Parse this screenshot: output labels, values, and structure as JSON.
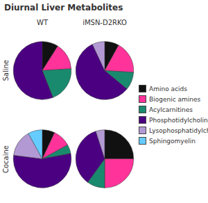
{
  "title": "Diurnal Liver Metabolites",
  "chart_data": [
    {
      "type": "pie",
      "title": "WT",
      "y_label": "Saline",
      "legend": "right",
      "categories": [
        "Amino acids",
        "Biogenic amines",
        "Acylcarnitines",
        "Phosphotidylcholines",
        "Lysophosphatidylcholines",
        "Sphingomyelin"
      ],
      "values": [
        9,
        15,
        20,
        56,
        0,
        0
      ],
      "colors": [
        "#111111",
        "#ff3399",
        "#1a8a6e",
        "#4b0082",
        "#b399d4",
        "#66ccff"
      ]
    },
    {
      "type": "pie",
      "title": "iMSN-D2RKO",
      "categories": [
        "Amino acids",
        "Biogenic amines",
        "Acylcarnitines",
        "Phosphotidylcholines",
        "Lysophosphatidylcholines",
        "Sphingomyelin"
      ],
      "values": [
        8,
        18,
        10,
        57,
        7,
        0
      ],
      "colors": [
        "#111111",
        "#ff3399",
        "#1a8a6e",
        "#4b0082",
        "#b399d4",
        "#66ccff"
      ]
    },
    {
      "type": "pie",
      "y_label": "Cocaine",
      "categories": [
        "Amino acids",
        "Biogenic amines",
        "Acylcarnitines",
        "Phosphotidylcholines",
        "Lysophosphatidylcholines",
        "Sphingomyelin"
      ],
      "values": [
        7,
        10,
        5,
        55,
        15,
        8
      ],
      "colors": [
        "#111111",
        "#ff3399",
        "#1a8a6e",
        "#4b0082",
        "#b399d4",
        "#66ccff"
      ]
    },
    {
      "type": "pie",
      "categories": [
        "Amino acids",
        "Biogenic amines",
        "Acylcarnitines",
        "Phosphotidylcholines",
        "Lysophosphatidylcholines",
        "Sphingomyelin"
      ],
      "values": [
        25,
        25,
        10,
        35,
        5,
        0
      ],
      "colors": [
        "#111111",
        "#ff3399",
        "#1a8a6e",
        "#4b0082",
        "#b399d4",
        "#66ccff"
      ]
    }
  ]
}
